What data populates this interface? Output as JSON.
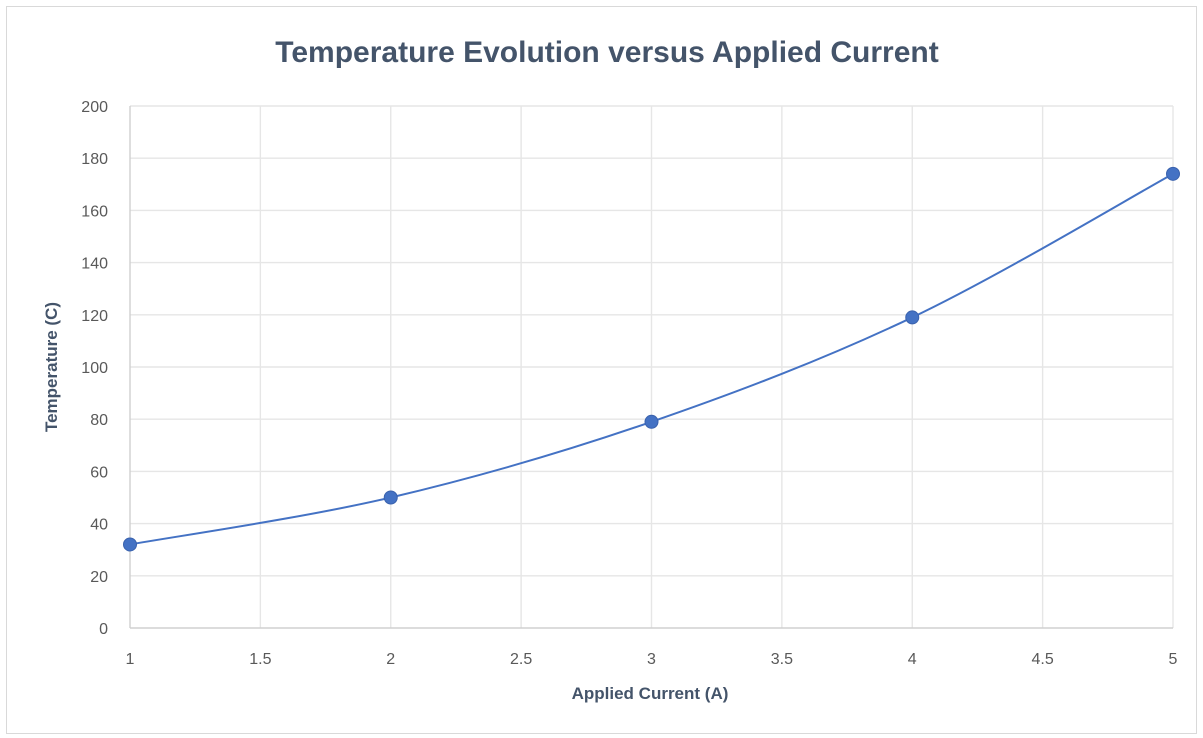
{
  "chart_data": {
    "type": "scatter",
    "title": "Temperature Evolution versus Applied Current",
    "xlabel": "Applied Current (A)",
    "ylabel": "Temperature (C)",
    "xlim": [
      1,
      5
    ],
    "ylim": [
      0,
      200
    ],
    "x_ticks": [
      "1",
      "1.5",
      "2",
      "2.5",
      "3",
      "3.5",
      "4",
      "4.5",
      "5"
    ],
    "y_ticks": [
      "0",
      "20",
      "40",
      "60",
      "80",
      "100",
      "120",
      "140",
      "160",
      "180",
      "200"
    ],
    "grid": true,
    "smoothed_line": true,
    "legend": "none",
    "series": [
      {
        "x": [
          1,
          2,
          3,
          4,
          5
        ],
        "y": [
          32,
          50,
          79,
          119,
          174
        ],
        "color": "#4472c4"
      }
    ]
  }
}
